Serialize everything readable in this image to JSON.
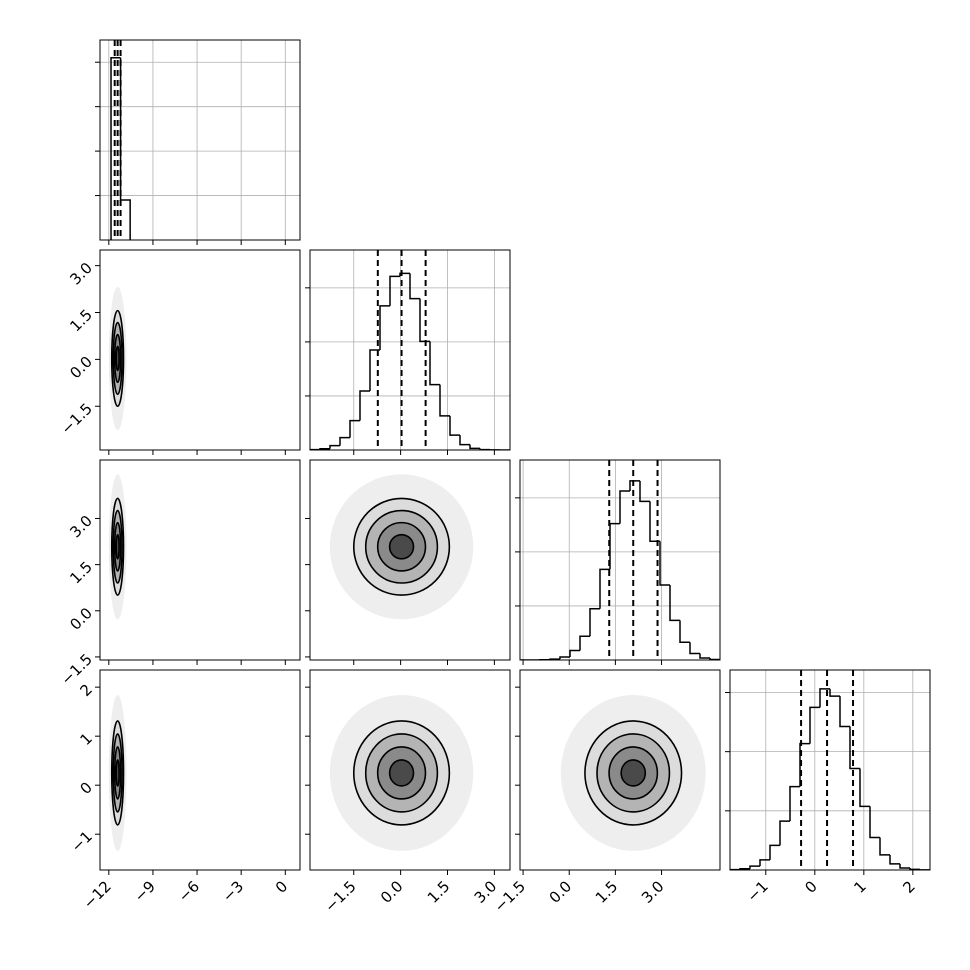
{
  "chart_data": {
    "type": "corner",
    "color": "#000000",
    "grid": true,
    "params": [
      {
        "lim": [
          -12.6,
          1.0
        ],
        "ticks": [
          {
            "value": -12,
            "label": "−12"
          },
          {
            "value": -9,
            "label": "−9"
          },
          {
            "value": -6,
            "label": "−6"
          },
          {
            "value": -3,
            "label": "−3"
          },
          0
        ],
        "quantiles": [
          -11.6,
          -11.4,
          -11.2
        ],
        "bins": [
          -11.85,
          -11.2,
          -10.55
        ],
        "counts": [
          8200,
          1800
        ],
        "hist_ylim": [
          0,
          9000
        ],
        "hist_yticks": [
          2000,
          4000,
          6000,
          8000
        ]
      },
      {
        "lim": [
          -2.9,
          3.5
        ],
        "ticks": [
          {
            "value": -1.5,
            "label": "−1.5"
          },
          {
            "value": 0,
            "label": "0.0"
          },
          1.5,
          {
            "value": 3,
            "label": "3.0"
          }
        ],
        "quantiles": [
          -0.73,
          0.03,
          0.8
        ],
        "bins": [
          -2.9,
          -2.58,
          -2.26,
          -1.94,
          -1.62,
          -1.3,
          -0.98,
          -0.66,
          -0.34,
          -0.02,
          0.3,
          0.62,
          0.94,
          1.26,
          1.58,
          1.9,
          2.22,
          2.54,
          2.86,
          3.18,
          3.5
        ],
        "counts": [
          3,
          12,
          40,
          115,
          272,
          546,
          925,
          1333,
          1606,
          1634,
          1400,
          1005,
          605,
          316,
          138,
          50,
          15,
          4,
          1,
          0
        ],
        "hist_ylim": [
          0,
          1850
        ],
        "hist_yticks": [
          500,
          1000,
          1500
        ]
      },
      {
        "lim": [
          -1.6,
          4.9
        ],
        "ticks": [
          {
            "value": -1.5,
            "label": "−1.5"
          },
          {
            "value": 0,
            "label": "0.0"
          },
          1.5,
          {
            "value": 3,
            "label": "3.0"
          }
        ],
        "quantiles": [
          1.3,
          2.08,
          2.87
        ],
        "bins": [
          -1.6,
          -1.275,
          -0.95,
          -0.625,
          -0.3,
          0.025,
          0.35,
          0.675,
          1.0,
          1.325,
          1.65,
          1.975,
          2.3,
          2.625,
          2.95,
          3.275,
          3.6,
          3.925,
          4.25,
          4.575,
          4.9
        ],
        "counts": [
          0,
          0,
          2,
          8,
          28,
          88,
          220,
          474,
          838,
          1261,
          1563,
          1657,
          1467,
          1098,
          694,
          366,
          164,
          60,
          19,
          5
        ],
        "hist_ylim": [
          0,
          1850
        ],
        "hist_yticks": [
          500,
          1000,
          1500
        ]
      },
      {
        "lim": [
          -1.73,
          2.35
        ],
        "ticks": [
          {
            "value": -1,
            "label": "−1"
          },
          0,
          1,
          2
        ],
        "quantiles": [
          -0.28,
          0.25,
          0.78
        ],
        "bins": [
          -1.73,
          -1.526,
          -1.322,
          -1.118,
          -0.914,
          -0.71,
          -0.506,
          -0.302,
          -0.098,
          0.106,
          0.31,
          0.514,
          0.718,
          0.922,
          1.126,
          1.33,
          1.534,
          1.738,
          1.942,
          2.146,
          2.35
        ],
        "counts": [
          3,
          11,
          33,
          86,
          208,
          413,
          705,
          1068,
          1374,
          1531,
          1469,
          1213,
          858,
          538,
          275,
          128,
          52,
          17,
          5,
          1
        ],
        "hist_ylim": [
          0,
          1690
        ],
        "hist_yticks": [
          500,
          1000,
          1500
        ]
      }
    ]
  }
}
